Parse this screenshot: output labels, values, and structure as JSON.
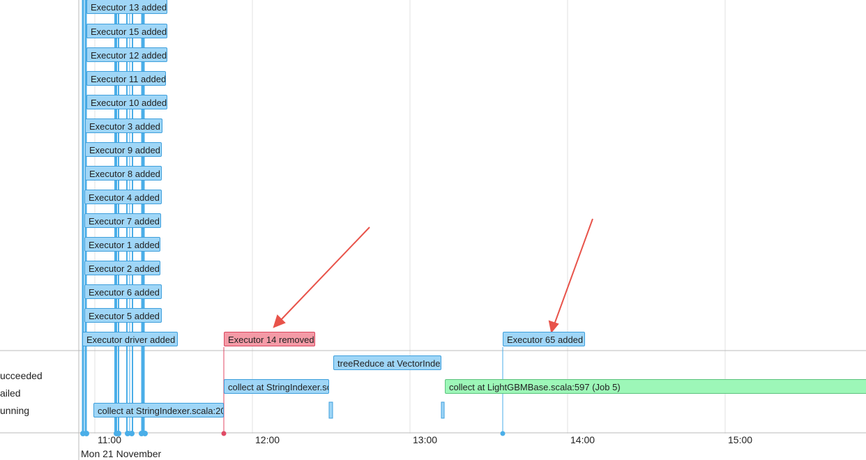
{
  "legend": [
    "ucceeded",
    "ailed",
    "unning"
  ],
  "executors": [
    {
      "label": "Executor 13 added"
    },
    {
      "label": "Executor 15 added"
    },
    {
      "label": "Executor 12 added"
    },
    {
      "label": "Executor 11 added"
    },
    {
      "label": "Executor 10 added"
    },
    {
      "label": "Executor 3 added"
    },
    {
      "label": "Executor 9 added"
    },
    {
      "label": "Executor 8 added"
    },
    {
      "label": "Executor 4 added"
    },
    {
      "label": "Executor 7 added"
    },
    {
      "label": "Executor 1 added"
    },
    {
      "label": "Executor 2 added"
    },
    {
      "label": "Executor 6 added"
    },
    {
      "label": "Executor 5 added"
    },
    {
      "label": "Executor driver added"
    },
    {
      "label": "Executor 14 removed"
    },
    {
      "label": "Executor 65 added"
    }
  ],
  "jobs": [
    {
      "label": "treeReduce at VectorIndex"
    },
    {
      "label": "collect at StringIndexer.sc"
    },
    {
      "label": "collect at LightGBMBase.scala:597 (Job 5)"
    },
    {
      "label": "collect at StringIndexer.scala:20"
    }
  ],
  "axis": {
    "ticks": [
      "11:00",
      "12:00",
      "13:00",
      "14:00",
      "15:00"
    ],
    "date": "Mon 21 November"
  }
}
